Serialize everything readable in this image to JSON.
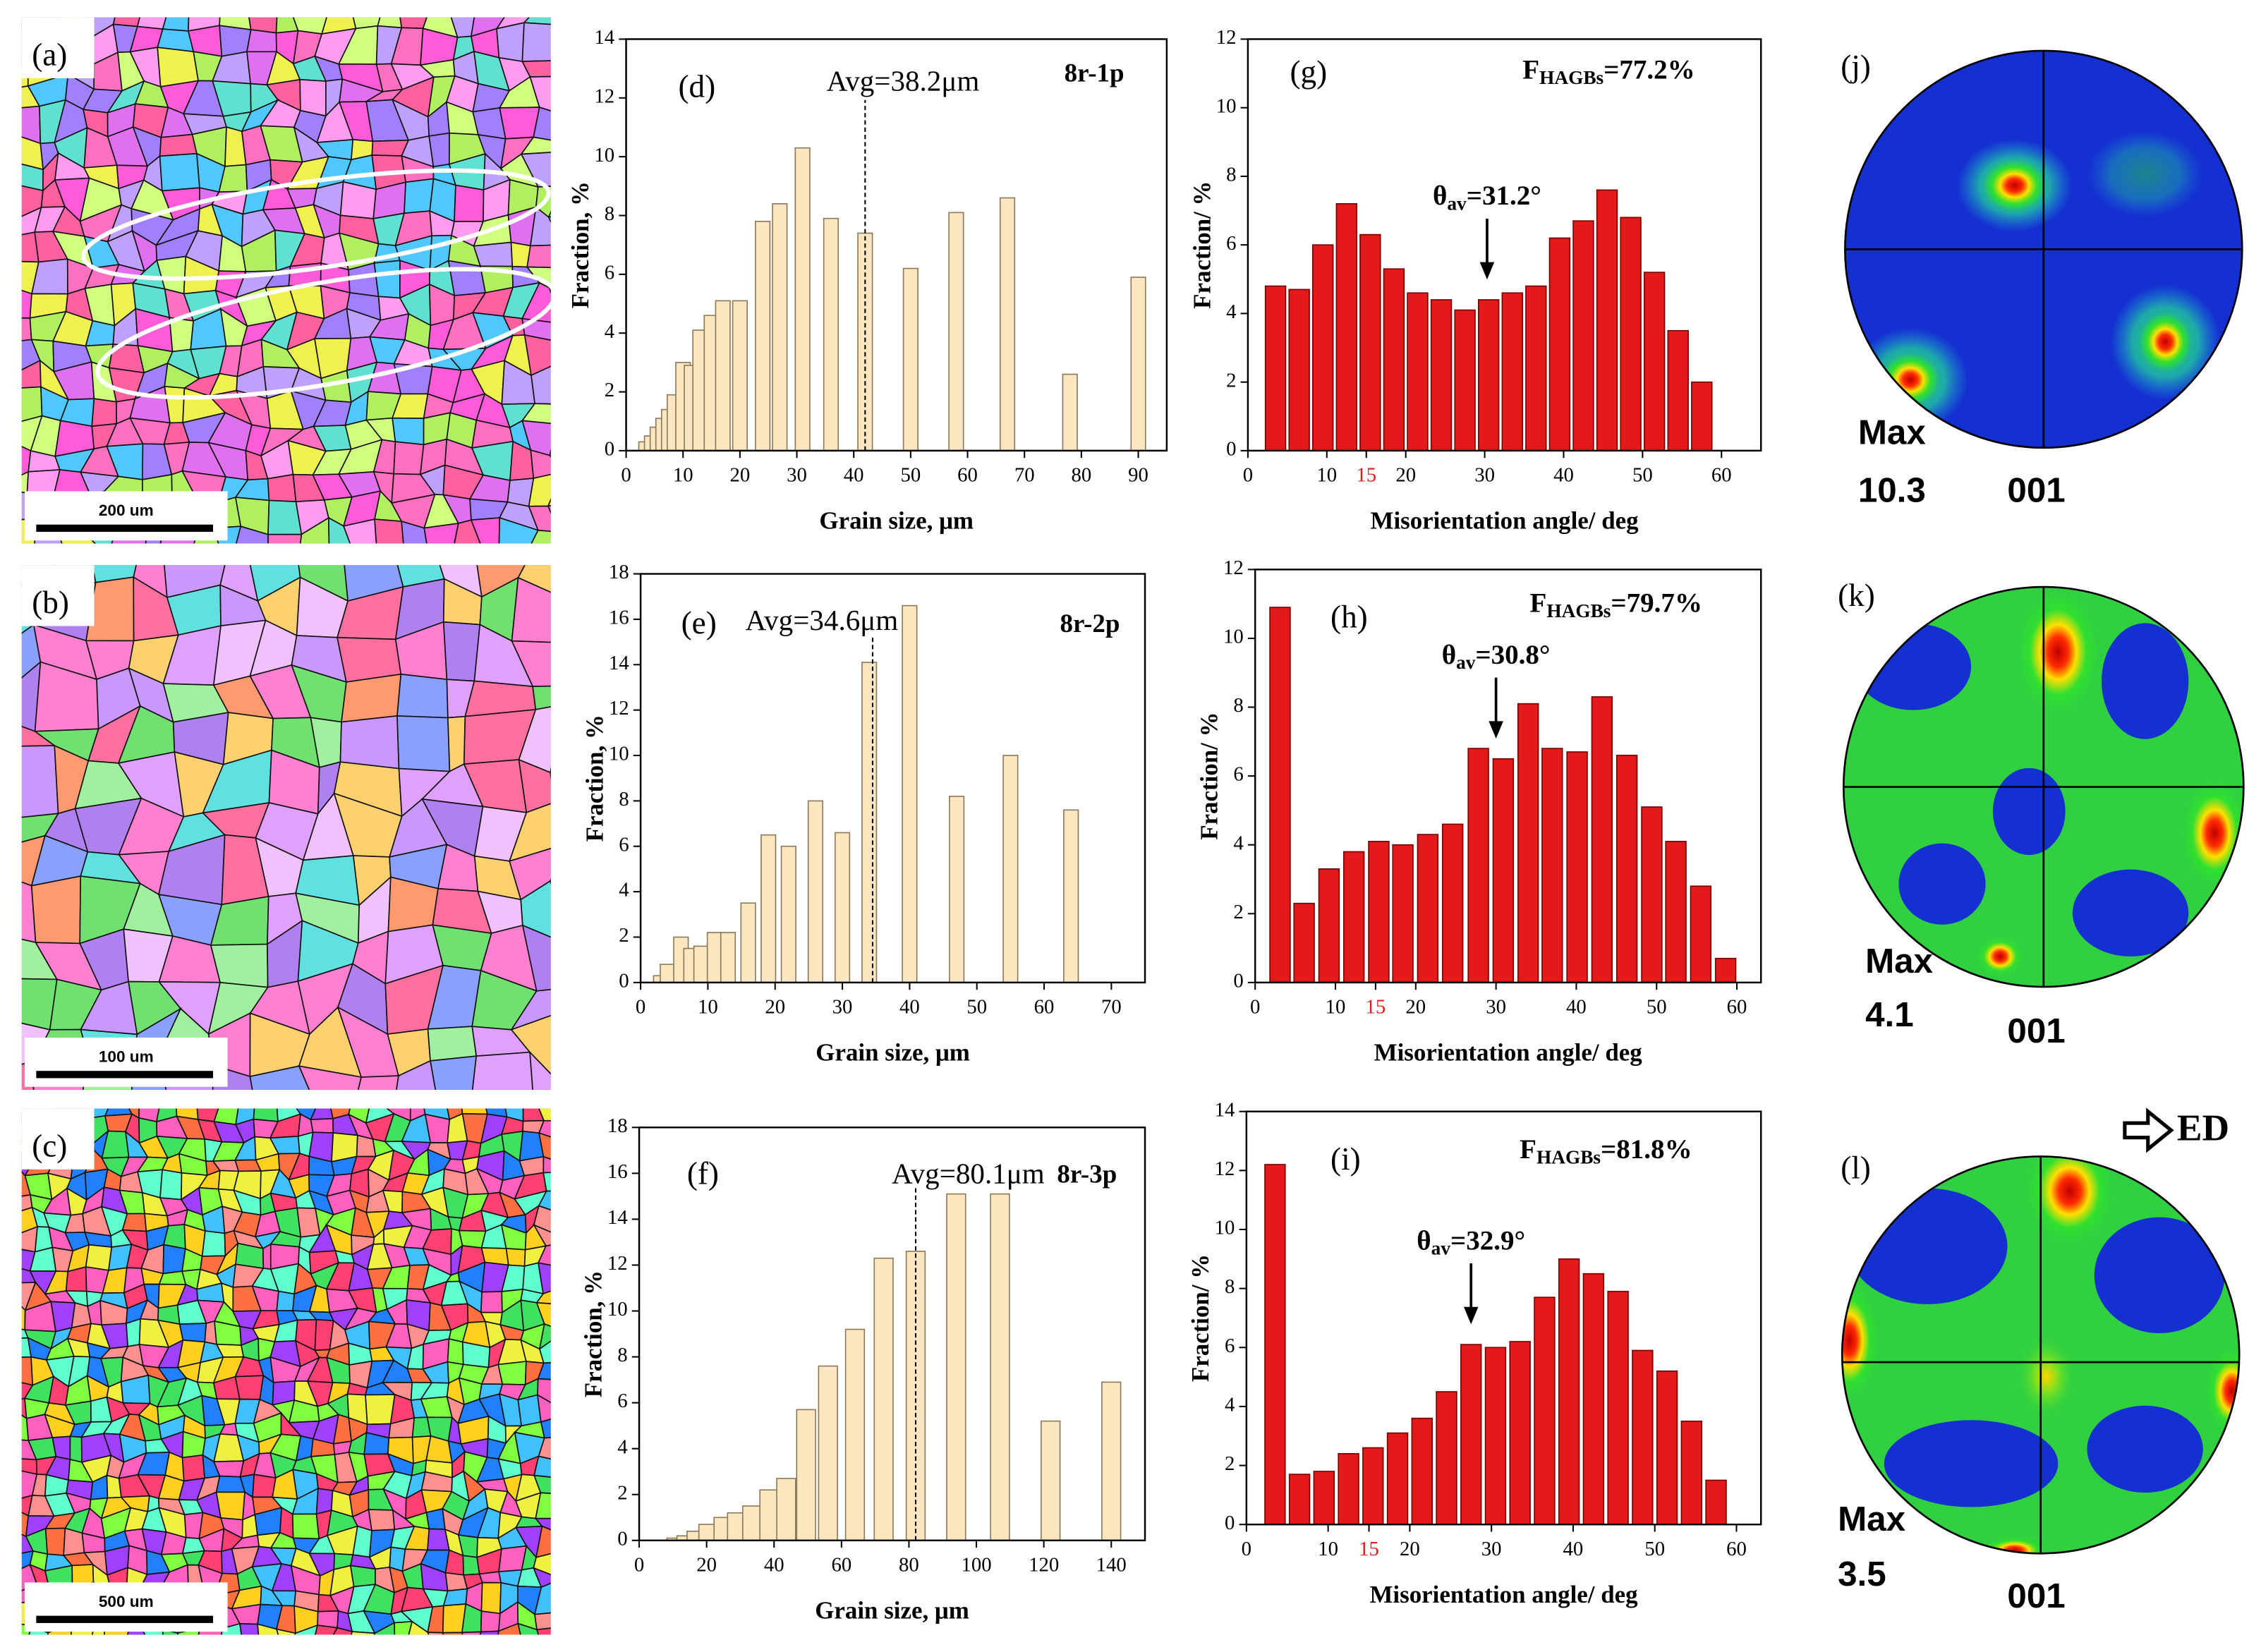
{
  "chart_data": [
    {
      "type": "bar",
      "panel": "(d)",
      "tag": "8r-1p",
      "x_label": "Grain size, μm",
      "y_label": "Fraction, %",
      "x": [
        3.5,
        4.5,
        5.5,
        6.5,
        7.5,
        8.5,
        10,
        11.5,
        13,
        15,
        17,
        20,
        24,
        27,
        31,
        36,
        42,
        50,
        58,
        67,
        78,
        90
      ],
      "values": [
        0.3,
        0.5,
        0.8,
        1.1,
        1.4,
        1.9,
        3.0,
        2.9,
        4.1,
        4.6,
        5.1,
        5.1,
        7.8,
        8.4,
        10.3,
        7.9,
        7.4,
        6.2,
        8.1,
        8.6,
        2.6,
        5.9
      ],
      "color": "#fbe6c0",
      "xlim": [
        0,
        95
      ],
      "xticks": [
        0,
        10,
        20,
        30,
        40,
        50,
        60,
        70,
        80,
        90
      ],
      "ylim": [
        0,
        14
      ],
      "yticks": [
        0,
        2,
        4,
        6,
        8,
        10,
        12,
        14
      ],
      "average": {
        "text": "Avg=38.2μm",
        "x": 42
      }
    },
    {
      "type": "bar",
      "panel": "(e)",
      "tag": "8r-2p",
      "x_label": "Grain size, μm",
      "y_label": "Fraction, %",
      "x": [
        3,
        4,
        6,
        7.5,
        9,
        11,
        13,
        16,
        19,
        22,
        26,
        30,
        34,
        40,
        47,
        55,
        64
      ],
      "values": [
        0.3,
        0.8,
        2.0,
        1.5,
        1.6,
        2.2,
        2.2,
        3.5,
        6.5,
        6.0,
        8.0,
        6.6,
        14.1,
        16.6,
        8.2,
        10.0,
        7.6
      ],
      "color": "#fbe6c0",
      "xlim": [
        0,
        75
      ],
      "xticks": [
        0,
        10,
        20,
        30,
        40,
        50,
        60,
        70
      ],
      "ylim": [
        0,
        18
      ],
      "yticks": [
        0,
        2,
        4,
        6,
        8,
        10,
        12,
        14,
        16,
        18
      ],
      "average": {
        "text": "Avg=34.6μm",
        "x": 34.5
      }
    },
    {
      "type": "bar",
      "panel": "(f)",
      "tag": "8r-3p",
      "x_label": "Grain size, μm",
      "y_label": "Fraction, %",
      "x": [
        11,
        14,
        17,
        20.5,
        25,
        29,
        33.5,
        38.6,
        43.6,
        49.5,
        56,
        64,
        72.5,
        82,
        94,
        107,
        122,
        140
      ],
      "values": [
        0.1,
        0.2,
        0.4,
        0.7,
        1.0,
        1.2,
        1.5,
        2.2,
        2.7,
        5.7,
        7.6,
        9.2,
        12.3,
        12.6,
        15.1,
        15.1,
        5.2,
        6.9
      ],
      "color": "#fbe6c0",
      "xlim": [
        0,
        150
      ],
      "xticks": [
        0,
        20,
        40,
        60,
        80,
        100,
        120,
        140
      ],
      "ylim": [
        0,
        18
      ],
      "yticks": [
        0,
        2,
        4,
        6,
        8,
        10,
        12,
        14,
        16,
        18
      ],
      "average": {
        "text": "Avg=80.1μm",
        "x": 82
      }
    },
    {
      "type": "bar",
      "panel": "(g)",
      "x_label": "Misorientation angle/ deg",
      "y_label": "Fraction/ %",
      "x": [
        3.5,
        6.5,
        9.5,
        12.5,
        15.5,
        18.5,
        21.5,
        24.5,
        27.5,
        30.5,
        33.5,
        36.5,
        39.5,
        42.5,
        45.5,
        48.5,
        51.5,
        54.5,
        57.5
      ],
      "values": [
        4.8,
        4.7,
        6.0,
        7.2,
        6.3,
        5.3,
        4.6,
        4.4,
        4.1,
        4.4,
        4.6,
        4.8,
        6.2,
        6.7,
        7.6,
        6.8,
        5.2,
        3.5,
        2.0
      ],
      "color": "#e41a1a",
      "xlim": [
        0,
        65
      ],
      "xticks": [
        0,
        10,
        15,
        20,
        30,
        40,
        50,
        60
      ],
      "highlight_tick": 15,
      "highlight_color": "#e41a1a",
      "ylim": [
        0,
        12
      ],
      "yticks": [
        0,
        2,
        4,
        6,
        8,
        10,
        12
      ],
      "hagb": {
        "main": "F",
        "sub": "HAGBs",
        "rest": "=77.2%"
      },
      "theta": {
        "main": "θ",
        "sub": "av",
        "rest": "=31.2°",
        "arrow_x": 30.3
      }
    },
    {
      "type": "bar",
      "panel": "(h)",
      "x_label": "Misorientation angle/ deg",
      "y_label": "Fraction/ %",
      "x": [
        3.1,
        6.1,
        9.2,
        12.3,
        15.4,
        18.4,
        21.5,
        24.6,
        27.8,
        30.9,
        34,
        37,
        40.1,
        43.2,
        46.3,
        49.4,
        52.4,
        55.5,
        58.6
      ],
      "values": [
        10.9,
        2.3,
        3.3,
        3.8,
        4.1,
        4.0,
        4.3,
        4.6,
        6.8,
        6.5,
        8.1,
        6.8,
        6.7,
        8.3,
        6.6,
        5.1,
        4.1,
        2.8,
        0.7
      ],
      "color": "#e41a1a",
      "xlim": [
        0,
        63
      ],
      "xticks": [
        0,
        10,
        15,
        20,
        30,
        40,
        50,
        60
      ],
      "highlight_tick": 15,
      "highlight_color": "#e41a1a",
      "ylim": [
        0,
        12
      ],
      "yticks": [
        0,
        2,
        4,
        6,
        8,
        10,
        12
      ],
      "hagb": {
        "main": "F",
        "sub": "HAGBs",
        "rest": "=79.7%"
      },
      "theta": {
        "main": "θ",
        "sub": "av",
        "rest": "=30.8°",
        "arrow_x": 30.0
      }
    },
    {
      "type": "bar",
      "panel": "(i)",
      "x_label": "Misorientation angle/ deg",
      "y_label": "Fraction/ %",
      "x": [
        3.5,
        6.5,
        9.5,
        12.5,
        15.5,
        18.5,
        21.5,
        24.5,
        27.5,
        30.5,
        33.5,
        36.5,
        39.5,
        42.5,
        45.5,
        48.5,
        51.5,
        54.5,
        57.5
      ],
      "values": [
        12.2,
        1.7,
        1.8,
        2.4,
        2.6,
        3.1,
        3.6,
        4.5,
        6.1,
        6.0,
        6.2,
        7.7,
        9.0,
        8.5,
        7.9,
        5.9,
        5.2,
        3.5,
        1.5
      ],
      "color": "#e41a1a",
      "xlim": [
        0,
        63
      ],
      "xticks": [
        0,
        10,
        15,
        20,
        30,
        40,
        50,
        60
      ],
      "highlight_tick": 15,
      "highlight_color": "#e41a1a",
      "ylim": [
        0,
        14
      ],
      "yticks": [
        0,
        2,
        4,
        6,
        8,
        10,
        12,
        14
      ],
      "hagb": {
        "main": "F",
        "sub": "HAGBs",
        "rest": "=81.8%"
      },
      "theta": {
        "main": "θ",
        "sub": "av",
        "rest": "=32.9°",
        "arrow_x": 27.5
      }
    }
  ],
  "maps": [
    {
      "panel": "(a)",
      "scale_bar": "200 um"
    },
    {
      "panel": "(b)",
      "scale_bar": "100 um"
    },
    {
      "panel": "(c)",
      "scale_bar": "500 um"
    }
  ],
  "pole_figures": [
    {
      "panel": "(j)",
      "max_label": "Max",
      "max": 10.3,
      "plane": "001"
    },
    {
      "panel": "(k)",
      "max_label": "Max",
      "max": 4.1,
      "plane": "001"
    },
    {
      "panel": "(l)",
      "max_label": "Max",
      "max": 3.5,
      "plane": "001"
    }
  ],
  "direction": "ED"
}
